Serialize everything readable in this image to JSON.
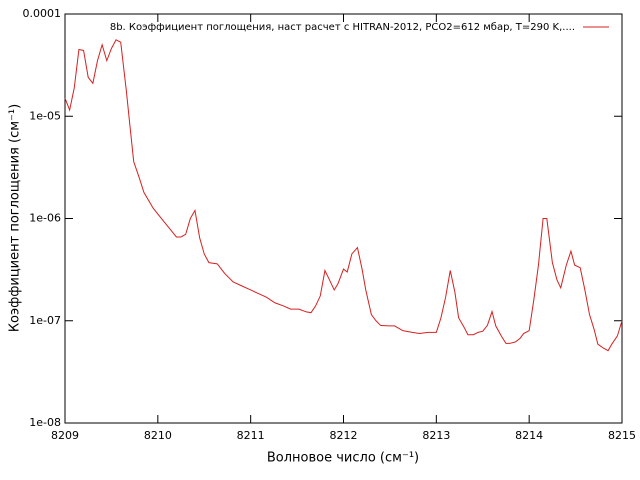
{
  "chart_data": {
    "type": "line",
    "xlabel": "Волновое число (см⁻¹)",
    "ylabel": "Коэффициент поглощения (см⁻¹)",
    "log_y": true,
    "legend": "top-right",
    "xlim": [
      8209,
      8215
    ],
    "xticks": [
      8209,
      8210,
      8211,
      8212,
      8213,
      8214,
      8215
    ],
    "ylim": [
      1e-08,
      0.0001
    ],
    "yticks": [
      {
        "value": 1e-08,
        "label": "1e-08"
      },
      {
        "value": 1e-07,
        "label": "1e-07"
      },
      {
        "value": 1e-06,
        "label": "1e-06"
      },
      {
        "value": 1e-05,
        "label": "1e-05"
      },
      {
        "value": 0.0001,
        "label": "0.0001"
      }
    ],
    "x": [
      8209.0,
      8209.05,
      8209.1,
      8209.15,
      8209.2,
      8209.25,
      8209.3,
      8209.35,
      8209.4,
      8209.45,
      8209.5,
      8209.55,
      8209.6,
      8209.66,
      8209.7,
      8209.74,
      8209.8,
      8209.85,
      8209.95,
      8210.05,
      8210.13,
      8210.2,
      8210.25,
      8210.3,
      8210.35,
      8210.4,
      8210.45,
      8210.5,
      8210.55,
      8210.64,
      8210.72,
      8210.81,
      8210.9,
      8211.0,
      8211.08,
      8211.17,
      8211.26,
      8211.35,
      8211.43,
      8211.52,
      8211.6,
      8211.65,
      8211.7,
      8211.75,
      8211.8,
      8211.85,
      8211.9,
      8211.94,
      8212.0,
      8212.04,
      8212.09,
      8212.15,
      8212.2,
      8212.24,
      8212.3,
      8212.35,
      8212.4,
      8212.49,
      8212.55,
      8212.64,
      8212.74,
      8212.82,
      8212.91,
      8213.0,
      8213.05,
      8213.1,
      8213.15,
      8213.2,
      8213.24,
      8213.3,
      8213.34,
      8213.4,
      8213.45,
      8213.5,
      8213.55,
      8213.6,
      8213.64,
      8213.7,
      8213.75,
      8213.79,
      8213.85,
      8213.9,
      8213.94,
      8214.0,
      8214.05,
      8214.1,
      8214.15,
      8214.19,
      8214.25,
      8214.3,
      8214.34,
      8214.4,
      8214.45,
      8214.49,
      8214.55,
      8214.6,
      8214.65,
      8214.7,
      8214.74,
      8214.8,
      8214.85,
      8214.89,
      8214.95,
      8215.0
    ],
    "series": [
      {
        "name": "8b. Коэффициент поглощения, наст расчет с HITRAN-2012, PCO2=612 мбар, T=290 K,....",
        "color": "#d62020",
        "values": [
          1.5e-05,
          1.15e-05,
          1.9e-05,
          4.5e-05,
          4.4e-05,
          2.4e-05,
          2.1e-05,
          3.5e-05,
          5e-05,
          3.5e-05,
          4.6e-05,
          5.6e-05,
          5.3e-05,
          1.8e-05,
          8e-06,
          3.6e-06,
          2.5e-06,
          1.8e-06,
          1.26e-06,
          9.7e-07,
          7.9e-07,
          6.6e-07,
          6.6e-07,
          7e-07,
          1e-06,
          1.2e-06,
          6.5e-07,
          4.5e-07,
          3.7e-07,
          3.6e-07,
          2.9e-07,
          2.4e-07,
          2.2e-07,
          2e-07,
          1.85e-07,
          1.7e-07,
          1.5e-07,
          1.4e-07,
          1.3e-07,
          1.3e-07,
          1.22e-07,
          1.2e-07,
          1.4e-07,
          1.75e-07,
          3.1e-07,
          2.5e-07,
          2e-07,
          2.3e-07,
          3.2e-07,
          3e-07,
          4.5e-07,
          5.2e-07,
          3.2e-07,
          2e-07,
          1.15e-07,
          1e-07,
          9e-08,
          8.9e-08,
          8.9e-08,
          8e-08,
          7.7e-08,
          7.5e-08,
          7.7e-08,
          7.7e-08,
          1.07e-07,
          1.7e-07,
          3.1e-07,
          1.9e-07,
          1.07e-07,
          8.6e-08,
          7.3e-08,
          7.3e-08,
          7.7e-08,
          7.9e-08,
          9e-08,
          1.23e-07,
          8.9e-08,
          7.1e-08,
          6e-08,
          6e-08,
          6.2e-08,
          6.7e-08,
          7.5e-08,
          8e-08,
          1.6e-07,
          3.5e-07,
          1e-06,
          1e-06,
          3.7e-07,
          2.5e-07,
          2.1e-07,
          3.5e-07,
          4.8e-07,
          3.5e-07,
          3.3e-07,
          2e-07,
          1.15e-07,
          8.2e-08,
          5.9e-08,
          5.4e-08,
          5.1e-08,
          5.9e-08,
          7.1e-08,
          1e-07
        ]
      }
    ]
  }
}
